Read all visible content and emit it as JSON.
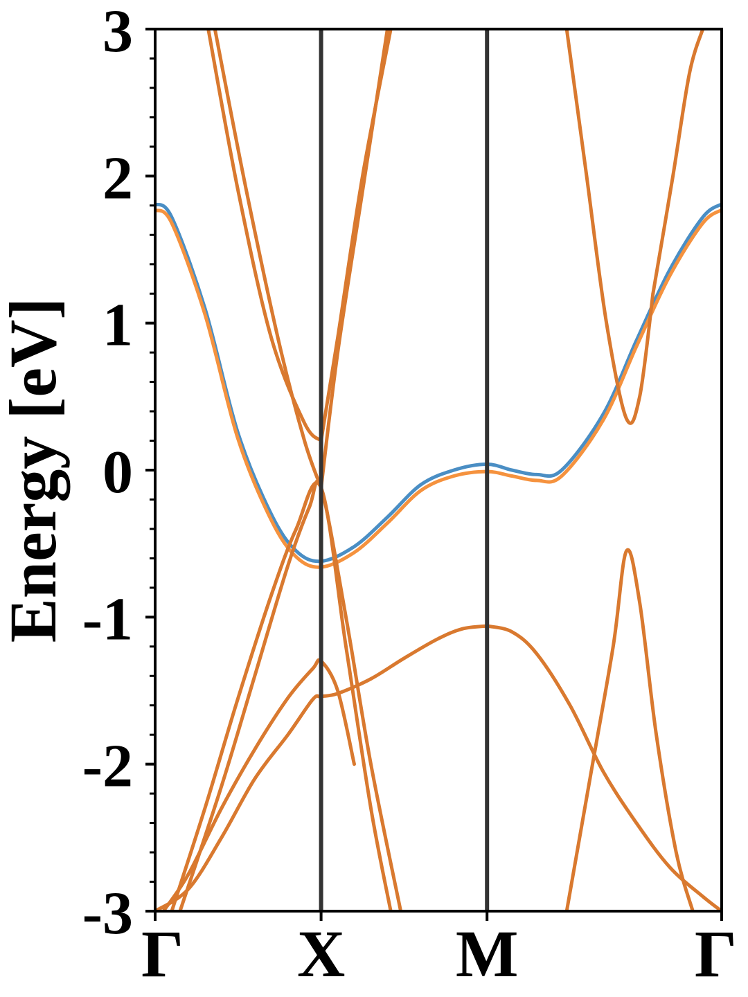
{
  "chart_data": {
    "type": "line",
    "title": "",
    "xlabel": "",
    "ylabel": "Energy [eV]",
    "ylim": [
      -3,
      3
    ],
    "xlim": [
      0,
      3.414
    ],
    "grid": false,
    "legend": "none",
    "y_ticks": [
      "-3",
      "-2",
      "-1",
      "0",
      "1",
      "2",
      "3"
    ],
    "x_ticks": [
      {
        "label": "Γ",
        "x": 0
      },
      {
        "label": "X",
        "x": 1
      },
      {
        "label": "M",
        "x": 2
      },
      {
        "label": "Γ",
        "x": 3.414
      }
    ],
    "colors": {
      "blue": "#4a8ec4",
      "orange": "#f5923e",
      "dark_orange": "#d9792f",
      "vline": "#333333"
    },
    "series": [
      {
        "color": "#4a8ec4",
        "x": [
          0,
          0.1,
          0.3,
          0.5,
          0.7,
          0.85,
          1.0,
          1.2,
          1.4,
          1.6,
          1.8,
          2.0,
          2.15,
          2.3,
          2.45,
          2.7,
          2.9,
          3.1,
          3.3,
          3.414
        ],
        "y": [
          1.81,
          1.72,
          1.1,
          0.25,
          -0.3,
          -0.55,
          -0.62,
          -0.52,
          -0.32,
          -0.1,
          0.0,
          0.04,
          0.0,
          -0.03,
          0.0,
          0.38,
          0.88,
          1.36,
          1.72,
          1.81
        ]
      },
      {
        "color": "#f5923e",
        "x": [
          0,
          0.1,
          0.3,
          0.5,
          0.7,
          0.85,
          1.0,
          1.2,
          1.4,
          1.6,
          1.8,
          2.0,
          2.15,
          2.3,
          2.45,
          2.7,
          2.9,
          3.1,
          3.3,
          3.414
        ],
        "y": [
          1.77,
          1.68,
          1.06,
          0.21,
          -0.34,
          -0.59,
          -0.66,
          -0.56,
          -0.36,
          -0.14,
          -0.04,
          -0.01,
          -0.04,
          -0.07,
          -0.04,
          0.34,
          0.84,
          1.32,
          1.68,
          1.77
        ]
      },
      {
        "color": "#d9792f",
        "x": [
          0.32,
          0.5,
          0.7,
          0.9,
          1.0
        ],
        "y": [
          3.0,
          1.9,
          0.9,
          0.32,
          0.2
        ]
      },
      {
        "color": "#d9792f",
        "x": [
          1.0,
          1.1,
          1.25,
          1.42
        ],
        "y": [
          0.2,
          0.9,
          2.0,
          3.0
        ]
      },
      {
        "color": "#d9792f",
        "x": [
          0.36,
          0.55,
          0.75,
          0.9,
          1.0
        ],
        "y": [
          3.0,
          1.9,
          0.85,
          0.2,
          -0.12
        ]
      },
      {
        "color": "#d9792f",
        "x": [
          1.0,
          1.1,
          1.25,
          1.4
        ],
        "y": [
          -0.12,
          0.8,
          1.9,
          3.0
        ]
      },
      {
        "color": "#d9792f",
        "x": [
          0.1,
          0.3,
          0.5,
          0.7,
          0.85,
          1.0,
          1.15,
          1.3,
          1.42
        ],
        "y": [
          -3.0,
          -2.3,
          -1.55,
          -0.85,
          -0.4,
          -0.12,
          -1.2,
          -2.3,
          -3.0
        ]
      },
      {
        "color": "#d9792f",
        "x": [
          0.15,
          0.4,
          0.6,
          0.8,
          0.93,
          1.0,
          1.15,
          1.3,
          1.48
        ],
        "y": [
          -3.0,
          -2.15,
          -1.4,
          -0.65,
          -0.25,
          -0.12,
          -1.0,
          -2.0,
          -3.0
        ]
      },
      {
        "color": "#d9792f",
        "x": [
          0.05,
          0.2,
          0.4,
          0.6,
          0.8,
          0.95,
          1.0,
          1.1,
          1.2
        ],
        "y": [
          -3.0,
          -2.75,
          -2.3,
          -1.9,
          -1.55,
          -1.35,
          -1.3,
          -1.5,
          -2.0
        ]
      },
      {
        "color": "#d9792f",
        "x": [
          0.0,
          0.2,
          0.4,
          0.6,
          0.8,
          0.95,
          1.0,
          1.1,
          1.3,
          1.5,
          1.7,
          1.85,
          2.0
        ],
        "y": [
          -3.0,
          -2.85,
          -2.5,
          -2.1,
          -1.8,
          -1.56,
          -1.54,
          -1.52,
          -1.42,
          -1.28,
          -1.15,
          -1.08,
          -1.06
        ]
      },
      {
        "color": "#d9792f",
        "x": [
          2.0,
          2.15,
          2.3,
          2.5,
          2.7,
          2.9,
          3.1,
          3.3,
          3.414
        ],
        "y": [
          -1.06,
          -1.1,
          -1.25,
          -1.6,
          -2.05,
          -2.4,
          -2.7,
          -2.9,
          -3.0
        ]
      },
      {
        "color": "#d9792f",
        "x": [
          2.48,
          2.6,
          2.72,
          2.84,
          2.92,
          3.0
        ],
        "y": [
          3.0,
          2.0,
          1.0,
          0.35,
          0.5,
          1.2
        ]
      },
      {
        "color": "#d9792f",
        "x": [
          3.0,
          3.12,
          3.22,
          3.3
        ],
        "y": [
          1.2,
          2.0,
          2.7,
          3.0
        ]
      },
      {
        "color": "#d9792f",
        "x": [
          2.48,
          2.62,
          2.76,
          2.84,
          2.92,
          3.02,
          3.14,
          3.24
        ],
        "y": [
          -3.0,
          -2.1,
          -1.2,
          -0.55,
          -0.9,
          -1.8,
          -2.6,
          -3.0
        ]
      }
    ]
  }
}
